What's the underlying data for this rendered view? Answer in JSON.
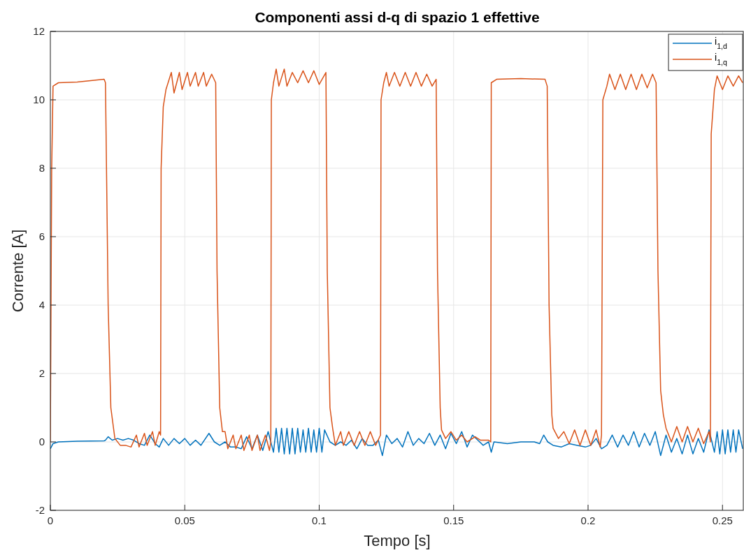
{
  "chart_data": {
    "type": "line",
    "title": "Componenti assi d-q di spazio 1 effettive",
    "xlabel": "Tempo [s]",
    "ylabel": "Corrente [A]",
    "xlim": [
      0,
      0.258
    ],
    "ylim": [
      -2,
      12
    ],
    "xticks": [
      0,
      0.05,
      0.1,
      0.15,
      0.2,
      0.25
    ],
    "yticks": [
      -2,
      0,
      2,
      4,
      6,
      8,
      10,
      12
    ],
    "grid": true,
    "legend": "top right",
    "line_style": "solid",
    "series": [
      {
        "name": "i$_{1,d}$",
        "color": "#0072bd",
        "x": [
          0,
          0.001,
          0.003,
          0.01,
          0.02,
          0.0205,
          0.0215,
          0.023,
          0.025,
          0.027,
          0.029,
          0.031,
          0.033,
          0.035,
          0.037,
          0.039,
          0.0405,
          0.042,
          0.044,
          0.046,
          0.048,
          0.05,
          0.052,
          0.054,
          0.056,
          0.059,
          0.061,
          0.063,
          0.065,
          0.067,
          0.069,
          0.071,
          0.073,
          0.075,
          0.077,
          0.079,
          0.081,
          0.083,
          0.084,
          0.085,
          0.086,
          0.087,
          0.088,
          0.089,
          0.09,
          0.091,
          0.092,
          0.093,
          0.094,
          0.095,
          0.096,
          0.097,
          0.098,
          0.099,
          0.1,
          0.101,
          0.102,
          0.104,
          0.106,
          0.108,
          0.11,
          0.112,
          0.114,
          0.116,
          0.118,
          0.12,
          0.122,
          0.1235,
          0.125,
          0.127,
          0.129,
          0.131,
          0.133,
          0.135,
          0.137,
          0.139,
          0.141,
          0.143,
          0.145,
          0.147,
          0.149,
          0.151,
          0.153,
          0.155,
          0.157,
          0.159,
          0.161,
          0.163,
          0.164,
          0.165,
          0.17,
          0.175,
          0.18,
          0.182,
          0.1835,
          0.185,
          0.187,
          0.19,
          0.193,
          0.196,
          0.199,
          0.201,
          0.203,
          0.205,
          0.207,
          0.209,
          0.211,
          0.213,
          0.215,
          0.217,
          0.219,
          0.221,
          0.223,
          0.225,
          0.227,
          0.229,
          0.231,
          0.233,
          0.235,
          0.237,
          0.239,
          0.241,
          0.243,
          0.245,
          0.247,
          0.248,
          0.249,
          0.25,
          0.251,
          0.252,
          0.253,
          0.254,
          0.255,
          0.256,
          0.2575
        ],
        "values": [
          -0.2,
          -0.05,
          0,
          0.02,
          0.03,
          0.05,
          0.15,
          0.05,
          0.1,
          0.05,
          0.1,
          0.05,
          -0.05,
          -0.1,
          0.2,
          -0.05,
          -0.15,
          0.1,
          -0.1,
          0.1,
          -0.05,
          0.1,
          -0.1,
          0.05,
          -0.1,
          0.25,
          0,
          -0.1,
          0,
          -0.15,
          -0.15,
          -0.2,
          0.15,
          -0.2,
          0.2,
          -0.25,
          0.3,
          -0.3,
          0.4,
          -0.3,
          0.4,
          -0.35,
          0.4,
          -0.35,
          0.4,
          -0.35,
          0.4,
          -0.3,
          0.35,
          -0.3,
          0.4,
          -0.3,
          0.35,
          -0.3,
          0.4,
          -0.3,
          0.35,
          0,
          -0.1,
          0,
          -0.1,
          0.05,
          -0.2,
          0.1,
          -0.1,
          -0.1,
          0.05,
          -0.4,
          0.2,
          -0.05,
          0.1,
          -0.15,
          0.3,
          -0.1,
          0.1,
          -0.05,
          0.25,
          -0.1,
          0.2,
          -0.2,
          0.25,
          -0.05,
          0.3,
          -0.15,
          0.2,
          0.05,
          -0.1,
          0,
          -0.3,
          0,
          -0.05,
          0,
          0,
          -0.05,
          0.2,
          0,
          -0.1,
          -0.15,
          -0.05,
          -0.1,
          -0.15,
          -0.1,
          0.1,
          -0.2,
          -0.1,
          0.2,
          -0.15,
          0.2,
          -0.1,
          0.3,
          -0.15,
          0.25,
          -0.1,
          0.3,
          -0.4,
          0.2,
          -0.3,
          0.1,
          -0.35,
          0.2,
          -0.35,
          0.1,
          -0.3,
          0.35,
          -0.3,
          0.3,
          -0.35,
          0.35,
          -0.35,
          0.35,
          -0.3,
          0.35,
          -0.3,
          0.35,
          -0.2
        ]
      },
      {
        "name": "i$_{1,q}$",
        "color": "#d95319",
        "x": [
          0,
          0.0005,
          0.001,
          0.003,
          0.01,
          0.02,
          0.0205,
          0.0215,
          0.0225,
          0.024,
          0.026,
          0.028,
          0.03,
          0.032,
          0.033,
          0.035,
          0.036,
          0.038,
          0.039,
          0.0405,
          0.041,
          0.0412,
          0.042,
          0.043,
          0.045,
          0.046,
          0.048,
          0.049,
          0.051,
          0.052,
          0.054,
          0.055,
          0.057,
          0.058,
          0.06,
          0.0615,
          0.062,
          0.063,
          0.064,
          0.065,
          0.066,
          0.068,
          0.069,
          0.071,
          0.072,
          0.074,
          0.075,
          0.077,
          0.078,
          0.08,
          0.0815,
          0.082,
          0.0822,
          0.083,
          0.084,
          0.085,
          0.087,
          0.088,
          0.09,
          0.092,
          0.094,
          0.096,
          0.098,
          0.1,
          0.1025,
          0.103,
          0.104,
          0.105,
          0.106,
          0.108,
          0.109,
          0.111,
          0.113,
          0.115,
          0.117,
          0.119,
          0.121,
          0.1228,
          0.123,
          0.124,
          0.125,
          0.126,
          0.128,
          0.13,
          0.132,
          0.134,
          0.136,
          0.138,
          0.14,
          0.142,
          0.1435,
          0.144,
          0.145,
          0.1455,
          0.147,
          0.149,
          0.151,
          0.153,
          0.155,
          0.158,
          0.16,
          0.163,
          0.1638,
          0.164,
          0.166,
          0.175,
          0.184,
          0.1848,
          0.1855,
          0.1865,
          0.187,
          0.189,
          0.191,
          0.193,
          0.195,
          0.197,
          0.199,
          0.201,
          0.203,
          0.2045,
          0.205,
          0.2055,
          0.207,
          0.208,
          0.21,
          0.212,
          0.214,
          0.216,
          0.218,
          0.22,
          0.222,
          0.224,
          0.2253,
          0.226,
          0.227,
          0.228,
          0.229,
          0.231,
          0.233,
          0.235,
          0.237,
          0.239,
          0.241,
          0.243,
          0.245,
          0.2455,
          0.2458,
          0.247,
          0.248,
          0.25,
          0.252,
          0.254,
          0.256,
          0.2575
        ],
        "values": [
          0,
          8,
          10.4,
          10.5,
          10.52,
          10.6,
          10.5,
          4,
          1,
          0.1,
          -0.1,
          -0.1,
          -0.15,
          0.2,
          -0.15,
          0.25,
          -0.1,
          0.3,
          -0.1,
          0.3,
          0.2,
          8,
          9.8,
          10.3,
          10.8,
          10.2,
          10.8,
          10.3,
          10.8,
          10.4,
          10.8,
          10.4,
          10.8,
          10.4,
          10.75,
          10.5,
          5,
          1,
          0.3,
          0.3,
          -0.2,
          0.2,
          -0.2,
          0.2,
          -0.25,
          0.2,
          -0.25,
          0.2,
          -0.25,
          0.2,
          -0.25,
          0,
          10,
          10.5,
          10.9,
          10.4,
          10.9,
          10.4,
          10.8,
          10.5,
          10.85,
          10.5,
          10.85,
          10.45,
          10.8,
          5,
          1,
          0.4,
          -0.1,
          0.3,
          -0.1,
          0.3,
          -0.1,
          0.3,
          -0.1,
          0.3,
          -0.1,
          0.2,
          10,
          10.5,
          10.8,
          10.4,
          10.8,
          10.4,
          10.8,
          10.4,
          10.8,
          10.4,
          10.75,
          10.4,
          10.6,
          5,
          1,
          0.35,
          0.1,
          0.3,
          0.05,
          0.2,
          0,
          0.15,
          0.05,
          0.05,
          0,
          10.5,
          10.6,
          10.62,
          10.6,
          10.4,
          4,
          0.8,
          0.4,
          0.1,
          0.3,
          -0.05,
          0.35,
          -0.1,
          0.35,
          -0.1,
          0.35,
          -0.15,
          0.2,
          10,
          10.4,
          10.75,
          10.3,
          10.75,
          10.3,
          10.75,
          10.3,
          10.75,
          10.35,
          10.75,
          10.5,
          5,
          1.5,
          0.8,
          0.4,
          0,
          0.45,
          0,
          0.45,
          0,
          0.4,
          -0.05,
          0.3,
          0,
          9,
          10.3,
          10.7,
          10.3,
          10.7,
          10.4,
          10.7,
          10.5
        ]
      }
    ]
  }
}
